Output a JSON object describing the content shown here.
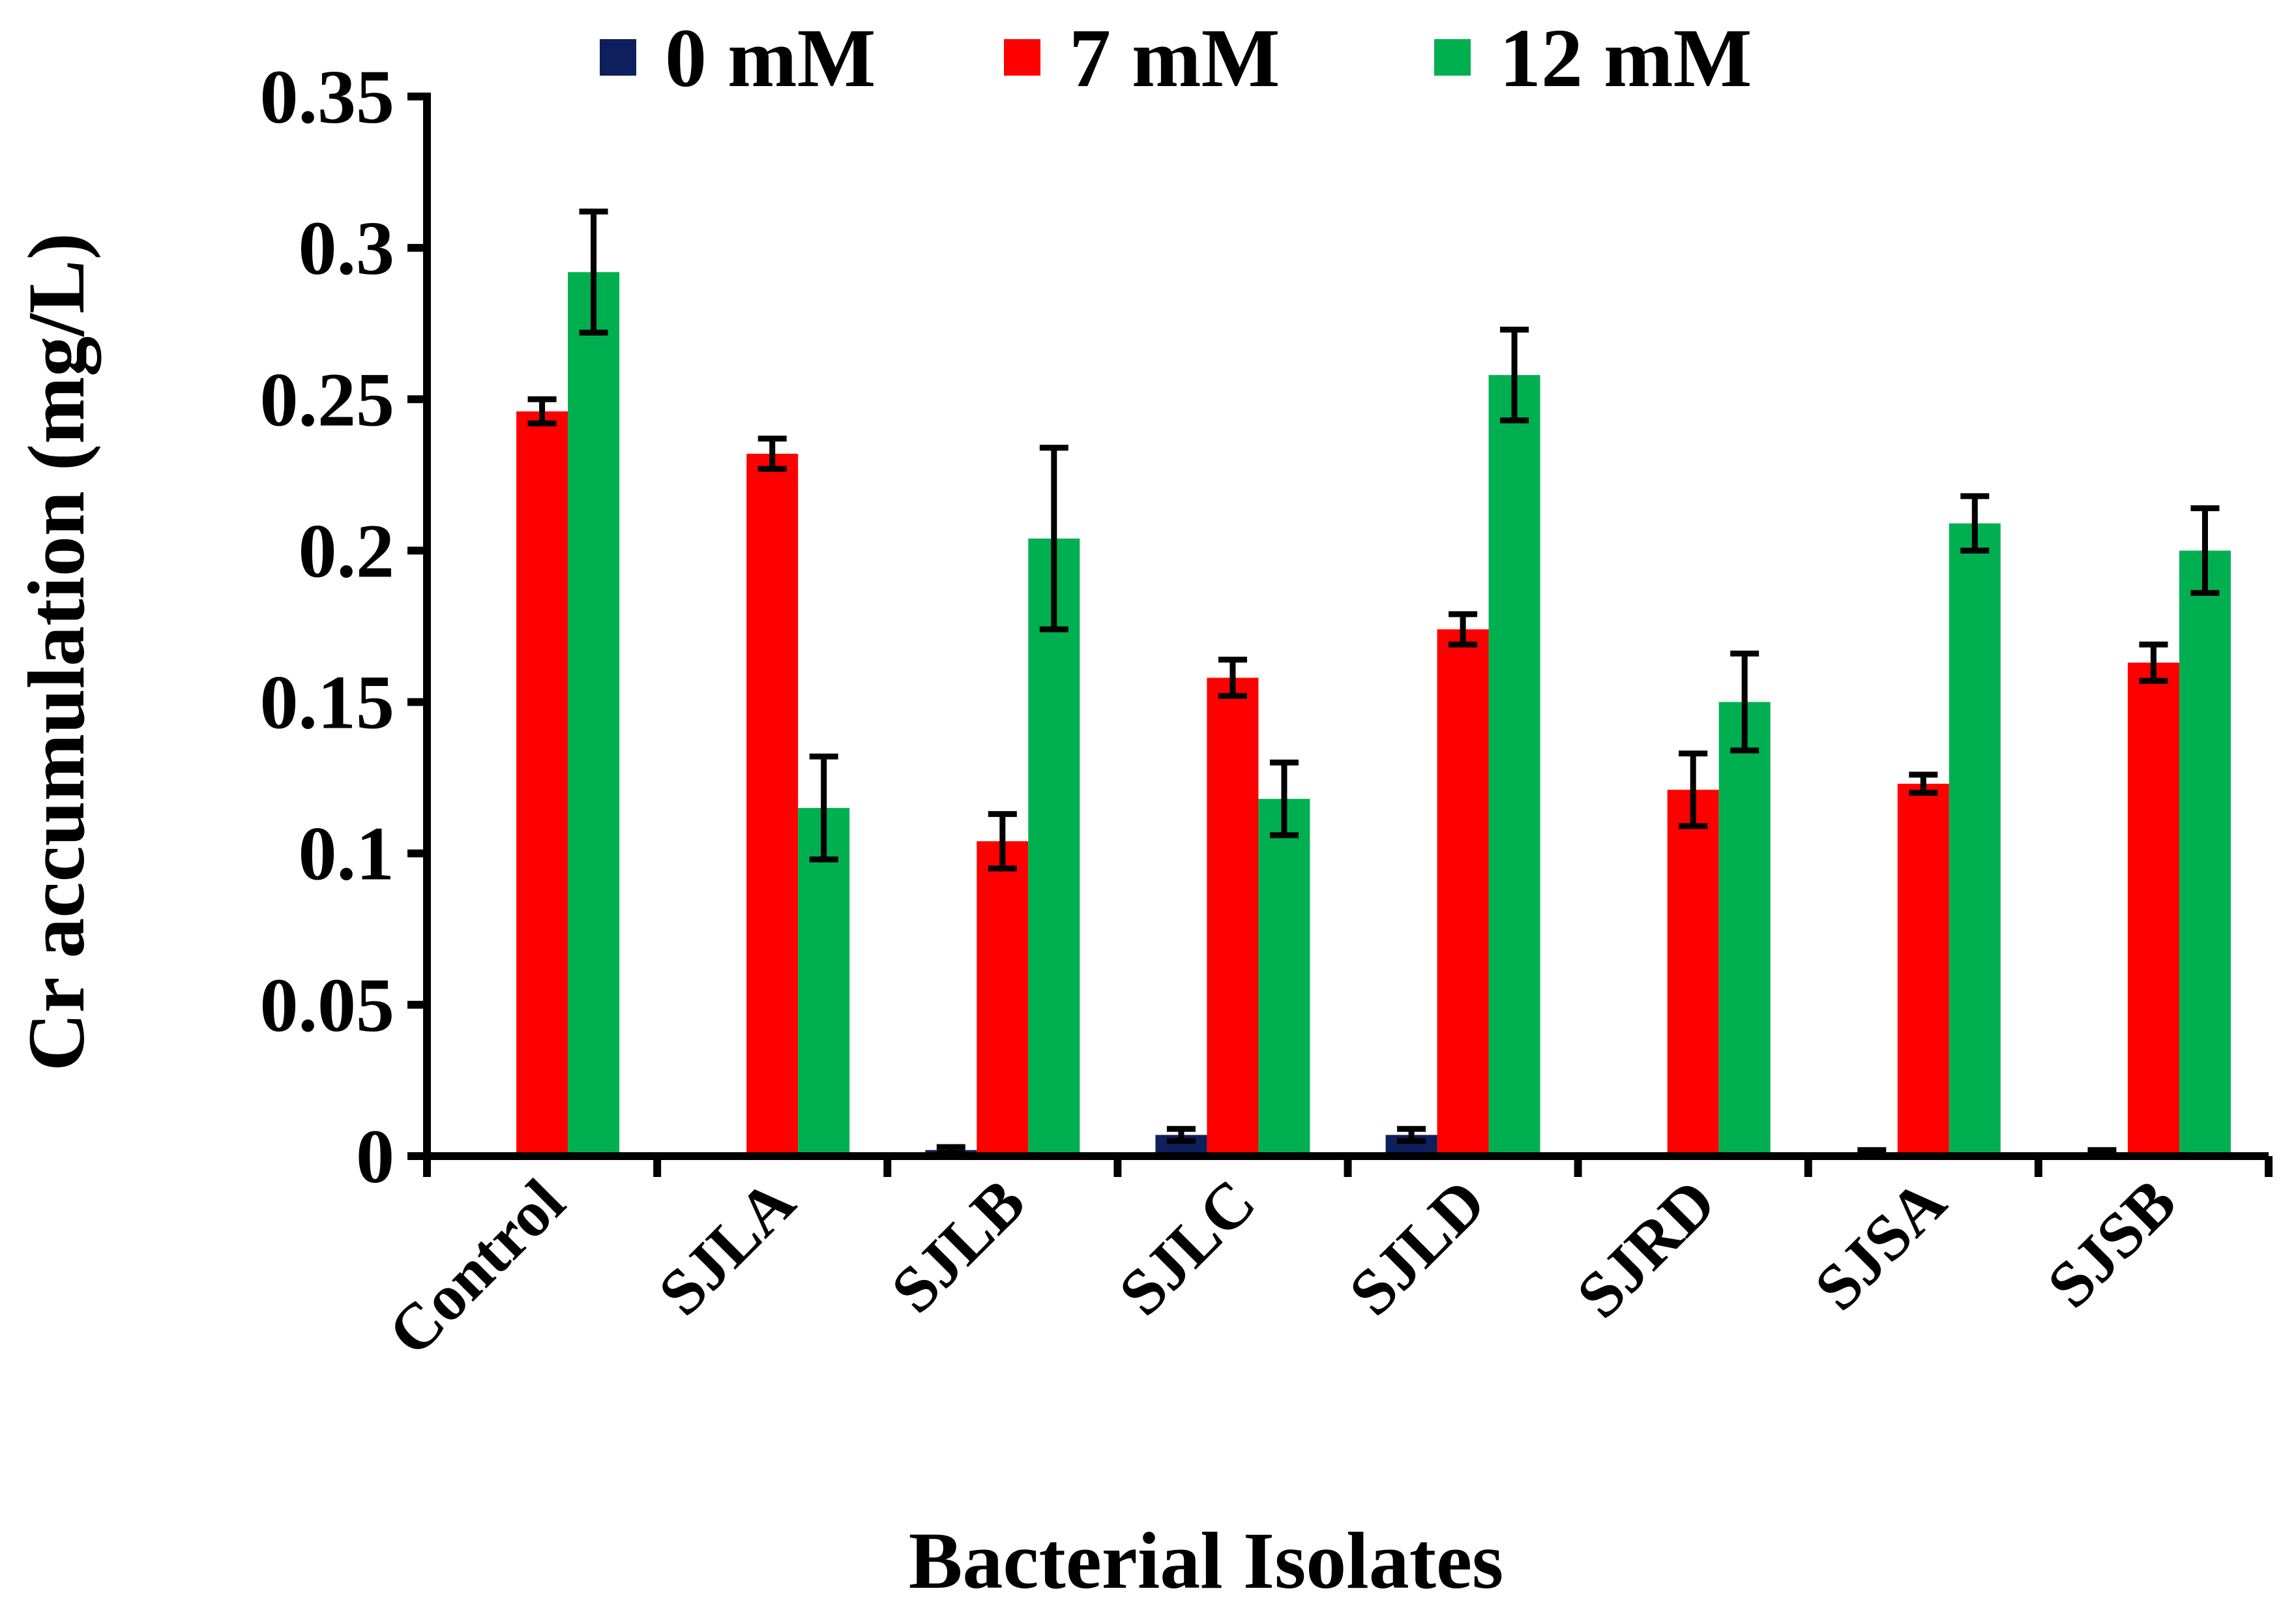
{
  "chart_data": {
    "type": "bar",
    "title": "",
    "xlabel": "Bacterial Isolates",
    "ylabel": "Cr accumulation (mg/L)",
    "ylim": [
      0,
      0.35
    ],
    "yticks": [
      0,
      0.05,
      0.1,
      0.15,
      0.2,
      0.25,
      0.3,
      0.35
    ],
    "ytick_labels": [
      "0",
      "0.05",
      "0.1",
      "0.15",
      "0.2",
      "0.25",
      "0.3",
      "0.35"
    ],
    "grid": false,
    "legend_position": "top",
    "categories": [
      "Control",
      "SJLA",
      "SJLB",
      "SJLC",
      "SJLD",
      "SJRD",
      "SJSA",
      "SJSB"
    ],
    "series": [
      {
        "name": "0 mM",
        "color": "#0d1f5c",
        "values": [
          0.0,
          0.0,
          0.002,
          0.007,
          0.007,
          0.0,
          0.001,
          0.001
        ],
        "errors": [
          0.0,
          0.0,
          0.001,
          0.002,
          0.002,
          0.0,
          0.001,
          0.001
        ]
      },
      {
        "name": "7 mM",
        "color": "#ff0000",
        "values": [
          0.246,
          0.232,
          0.104,
          0.158,
          0.174,
          0.121,
          0.123,
          0.163
        ],
        "errors": [
          0.004,
          0.005,
          0.009,
          0.006,
          0.005,
          0.012,
          0.003,
          0.006
        ]
      },
      {
        "name": "12 mM",
        "color": "#00b050",
        "values": [
          0.292,
          0.115,
          0.204,
          0.118,
          0.258,
          0.15,
          0.209,
          0.2
        ],
        "errors": [
          0.02,
          0.017,
          0.03,
          0.012,
          0.015,
          0.016,
          0.009,
          0.014
        ]
      }
    ]
  }
}
